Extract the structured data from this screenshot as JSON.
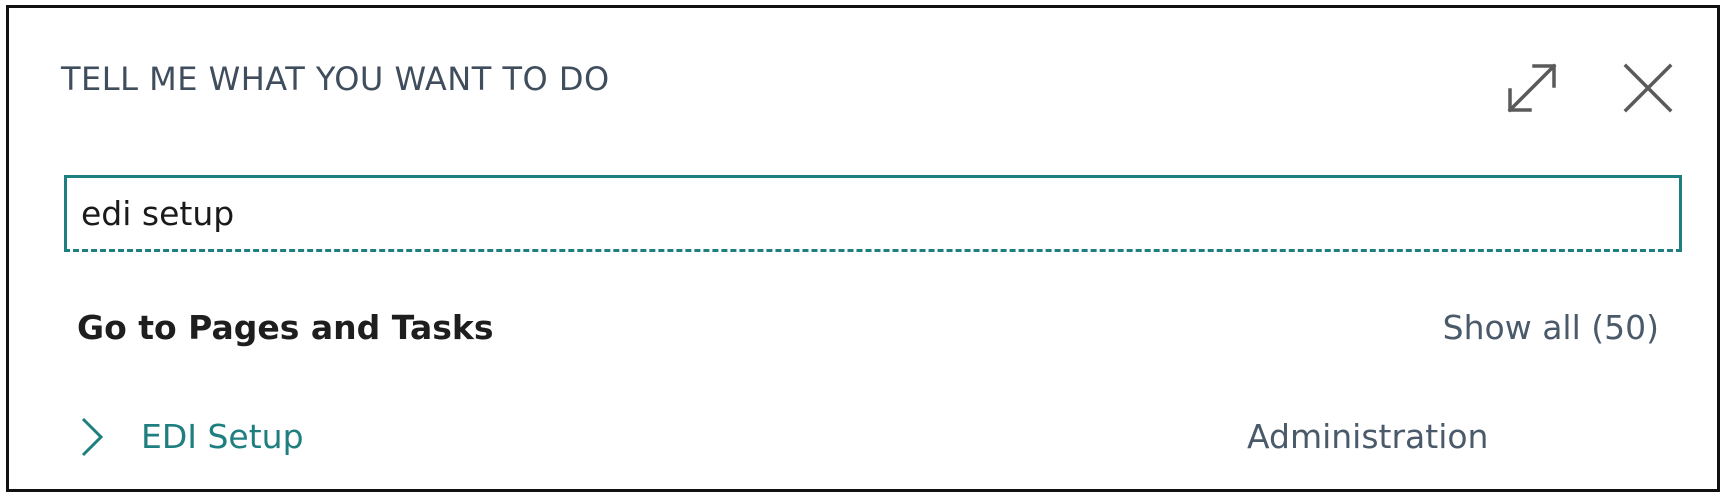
{
  "dialog": {
    "title": "TELL ME WHAT YOU WANT TO DO",
    "expand_icon": "expand-icon",
    "close_icon": "close-icon"
  },
  "search": {
    "value": "edi setup"
  },
  "results": {
    "section_title": "Go to Pages and Tasks",
    "show_all": "Show all (50)",
    "items": [
      {
        "label": "EDI Setup",
        "category": "Administration",
        "icon": "chevron-right-icon"
      }
    ]
  },
  "colors": {
    "accent": "#1f7f80",
    "title": "#3f4d5c",
    "secondary": "#4a5a6a",
    "icon": "#5a5a5a"
  }
}
